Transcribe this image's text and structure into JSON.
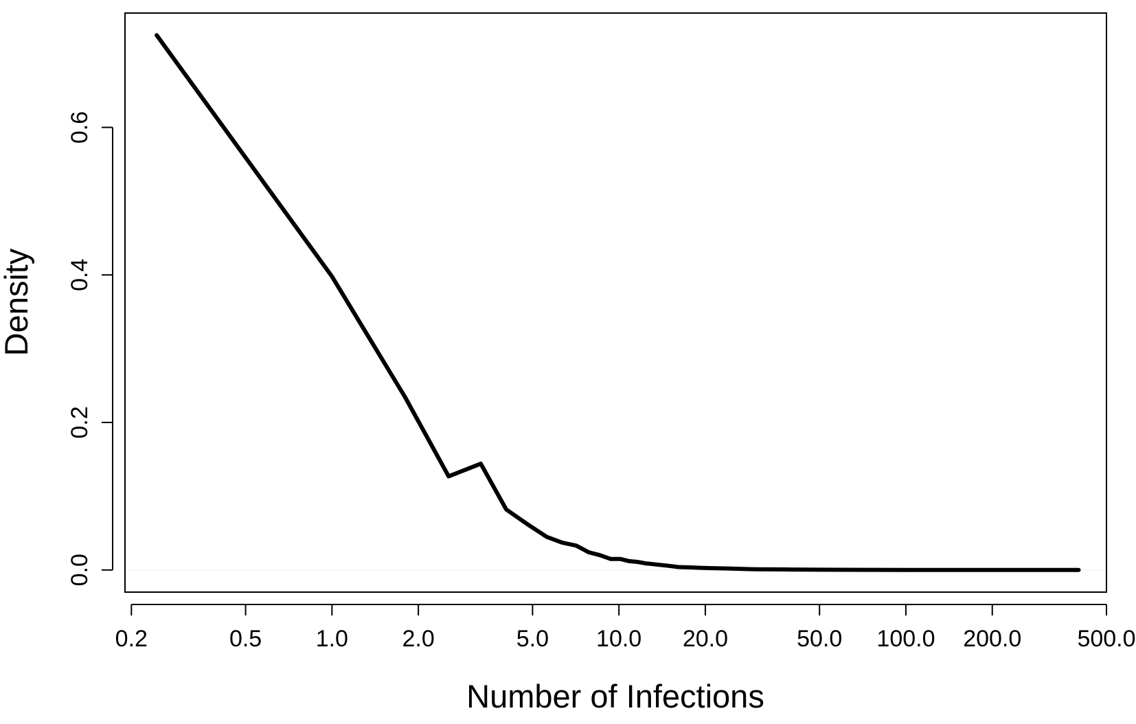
{
  "chart_data": {
    "type": "line",
    "title": "",
    "xlabel": "Number of Infections",
    "ylabel": "Density",
    "x_scale": "log",
    "xlim": [
      0.19,
      500
    ],
    "ylim": [
      -0.03,
      0.755
    ],
    "x_ticks": [
      0.2,
      0.5,
      1,
      2,
      5,
      10,
      20,
      50,
      100,
      200,
      500
    ],
    "x_tick_labels": [
      "0.2",
      "0.5",
      "1.0",
      "2.0",
      "5.0",
      "10.0",
      "20.0",
      "50.0",
      "100.0",
      "200.0",
      "500.0"
    ],
    "y_ticks": [
      0,
      0.2,
      0.4,
      0.6
    ],
    "y_tick_labels": [
      "0.0",
      "0.2",
      "0.4",
      "0.6"
    ],
    "grid": false,
    "legend": "none",
    "colors": {
      "line": "#000000",
      "axes": "#000000",
      "reference_line": "#eeeeee",
      "background": "#ffffff"
    },
    "series": [
      {
        "x": [
          0.245,
          1.0,
          1.8,
          2.55,
          3.3,
          4.05,
          4.8,
          5.6,
          6.35,
          7.1,
          7.85,
          8.6,
          9.35,
          10.1,
          10.85,
          11.6,
          12.35,
          13.1,
          13.85,
          14.6,
          15.35,
          16.1,
          17.6,
          19.1,
          21.0,
          24.0,
          27.0,
          30.0,
          35.0,
          40.0,
          50.0,
          60.0,
          80.0,
          100.0,
          150.0,
          200.0,
          300.0,
          400.0
        ],
        "y": [
          0.725,
          0.398,
          0.234,
          0.127,
          0.144,
          0.082,
          0.062,
          0.045,
          0.037,
          0.033,
          0.024,
          0.02,
          0.015,
          0.015,
          0.012,
          0.011,
          0.009,
          0.008,
          0.007,
          0.006,
          0.005,
          0.004,
          0.0035,
          0.003,
          0.0025,
          0.002,
          0.0015,
          0.001,
          0.0008,
          0.0006,
          0.0004,
          0.0003,
          0.0002,
          0.0001,
          0.0001,
          0.0,
          0.0,
          0.0
        ]
      }
    ]
  }
}
